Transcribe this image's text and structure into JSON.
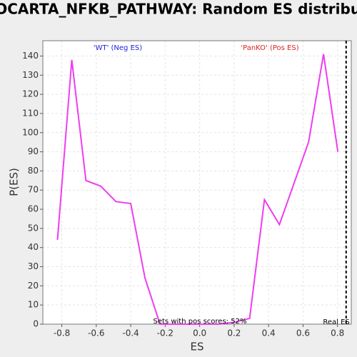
{
  "chart_data": {
    "type": "line",
    "title": "BIOCARTA_NFKB_PATHWAY: Random ES distribution",
    "x_label": "ES",
    "y_label": "P(ES)",
    "annotations": {
      "neg": "'WT' (Neg ES)",
      "pos": "'PanKO' (Pos ES)",
      "pos_scores": "Sets with pos scores: 52%"
    },
    "real_es": {
      "label": "Real ES",
      "value": 0.85
    },
    "x": [
      -0.825,
      -0.742,
      -0.66,
      -0.573,
      -0.486,
      -0.4,
      -0.317,
      -0.23,
      -0.147,
      -0.06,
      0.02,
      0.11,
      0.2,
      0.29,
      0.376,
      0.463,
      0.632,
      0.719,
      0.802
    ],
    "series": [
      {
        "name": "P(ES)",
        "color": "#f03cf0",
        "values": [
          44,
          138,
          75,
          72,
          64,
          63,
          24,
          0,
          0,
          0,
          0,
          0,
          1,
          3,
          65,
          52,
          95,
          141,
          90
        ]
      }
    ],
    "xlim": [
      -0.91,
      0.88
    ],
    "ylim": [
      0,
      148
    ],
    "xticks": [
      -0.8,
      -0.6,
      -0.4,
      -0.2,
      {
        "value": 0,
        "label": "0.0"
      },
      0.2,
      0.4,
      0.6,
      0.8
    ],
    "yticks": [
      0,
      10,
      20,
      30,
      40,
      50,
      60,
      70,
      80,
      90,
      100,
      110,
      120,
      130,
      140
    ],
    "grid": true,
    "colors": {
      "neg": "#2222dd",
      "pos": "#dd2222"
    }
  }
}
